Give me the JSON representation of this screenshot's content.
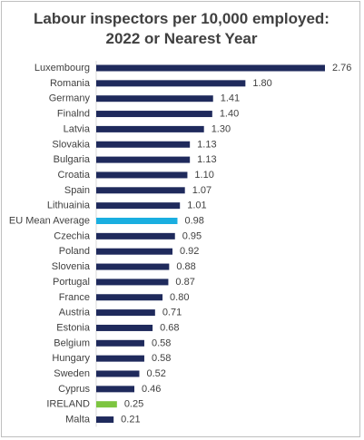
{
  "chart_data": {
    "type": "bar",
    "orientation": "horizontal",
    "title": [
      "Labour inspectors per 10,000 employed:",
      "2022 or Nearest Year"
    ],
    "categories": [
      "Luxembourg",
      "Romania",
      "Germany",
      "Finalnd",
      "Latvia",
      "Slovakia",
      "Bulgaria",
      "Croatia",
      "Spain",
      "Lithuainia",
      "EU Mean Average",
      "Czechia",
      "Poland",
      "Slovenia",
      "Portugal",
      "France",
      "Austria",
      "Estonia",
      "Belgium",
      "Hungary",
      "Sweden",
      "Cyprus",
      "IRELAND",
      "Malta"
    ],
    "values": [
      2.76,
      1.8,
      1.41,
      1.4,
      1.3,
      1.13,
      1.13,
      1.1,
      1.07,
      1.01,
      0.98,
      0.95,
      0.92,
      0.88,
      0.87,
      0.8,
      0.71,
      0.68,
      0.58,
      0.58,
      0.52,
      0.46,
      0.25,
      0.21
    ],
    "value_labels": [
      "2.76",
      "1.80",
      "1.41",
      "1.40",
      "1.30",
      "1.13",
      "1.13",
      "1.10",
      "1.07",
      "1.01",
      "0.98",
      "0.95",
      "0.92",
      "0.88",
      "0.87",
      "0.80",
      "0.71",
      "0.68",
      "0.58",
      "0.58",
      "0.52",
      "0.46",
      "0.25",
      "0.21"
    ],
    "xlim": [
      0,
      2.76
    ],
    "grid": false,
    "legend": "none",
    "colors": {
      "default": "#1f2a5c",
      "EU Mean Average": "#1aaee0",
      "IRELAND": "#7dc540"
    }
  }
}
